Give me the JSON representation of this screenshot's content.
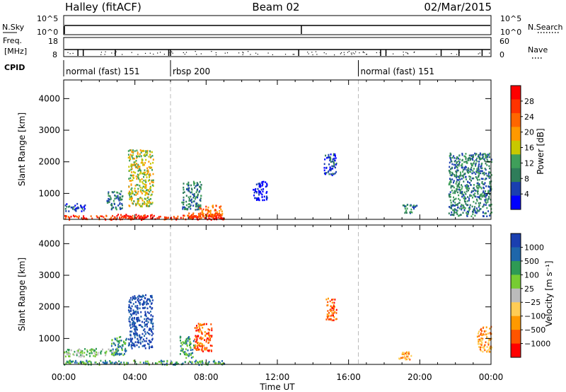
{
  "header": {
    "station": "Halley (fitACF)",
    "beam": "Beam 02",
    "date": "02/Mar/2015"
  },
  "summary_panels": {
    "nsky_label": "N.Sky",
    "nsearch_label": "N.Search",
    "noise_ticks": [
      "10^5",
      "10^0"
    ],
    "freq_label_1": "Freq.",
    "freq_label_2": "[MHz]",
    "freq_ticks": [
      "18",
      "8"
    ],
    "nave_label": "Nave",
    "nave_ticks": [
      "60",
      "0"
    ],
    "cpid_label": "CPID"
  },
  "cpid_segments": [
    {
      "label": "normal (fast) 151",
      "start_hour": 0.0
    },
    {
      "label": "rbsp 200",
      "start_hour": 6.0
    },
    {
      "label": "normal (fast) 151",
      "start_hour": 16.55
    }
  ],
  "colors": {
    "power": [
      "#0000ff",
      "#1a3fb0",
      "#2e7d5a",
      "#3f9f5a",
      "#c8c800",
      "#ff9900",
      "#ff6600",
      "#ff3300",
      "#ff0000"
    ],
    "velocity": [
      "#ff0000",
      "#ff5500",
      "#ff9900",
      "#ffcc55",
      "#bbbbbb",
      "#77cc33",
      "#2e9a55",
      "#1e66aa",
      "#1a3fb0"
    ]
  },
  "chart_data": [
    {
      "type": "heatmap",
      "panel": "power",
      "xlabel": "Time UT",
      "ylabel": "Slant Range [km]",
      "x_ticks": [
        "00:00",
        "04:00",
        "08:00",
        "12:00",
        "16:00",
        "20:00",
        "00:00"
      ],
      "xlim": [
        0,
        24
      ],
      "y_ticks": [
        1000,
        2000,
        3000,
        4000
      ],
      "ylim": [
        180,
        4590
      ],
      "colorbar": {
        "label": "Power [dB]",
        "ticks": [
          4,
          8,
          12,
          16,
          20,
          24,
          28
        ],
        "range": [
          0,
          32
        ]
      },
      "echo_regions": [
        {
          "t0": 0.0,
          "t1": 9.0,
          "r0": 190,
          "r1": 330,
          "level": 7
        },
        {
          "t0": 3.0,
          "t1": 5.1,
          "r0": 200,
          "r1": 360,
          "level": 8
        },
        {
          "t0": 7.0,
          "t1": 9.0,
          "r0": 200,
          "r1": 400,
          "level": 7
        },
        {
          "t0": 0.0,
          "t1": 1.2,
          "r0": 450,
          "r1": 700,
          "level": 1
        },
        {
          "t0": 2.4,
          "t1": 3.3,
          "r0": 500,
          "r1": 1100,
          "level": 2
        },
        {
          "t0": 3.6,
          "t1": 5.0,
          "r0": 600,
          "r1": 2400,
          "level": 4
        },
        {
          "t0": 6.6,
          "t1": 7.7,
          "r0": 500,
          "r1": 1400,
          "level": 2
        },
        {
          "t0": 7.6,
          "t1": 8.9,
          "r0": 300,
          "r1": 650,
          "level": 6
        },
        {
          "t0": 10.6,
          "t1": 11.4,
          "r0": 800,
          "r1": 1400,
          "level": 0
        },
        {
          "t0": 14.6,
          "t1": 15.3,
          "r0": 1600,
          "r1": 2300,
          "level": 1
        },
        {
          "t0": 19.0,
          "t1": 19.8,
          "r0": 400,
          "r1": 700,
          "level": 2
        },
        {
          "t0": 21.6,
          "t1": 24.0,
          "r0": 300,
          "r1": 2300,
          "level": 2
        }
      ]
    },
    {
      "type": "heatmap",
      "panel": "velocity",
      "xlabel": "Time UT",
      "ylabel": "Slant Range [km]",
      "x_ticks": [
        "00:00",
        "04:00",
        "08:00",
        "12:00",
        "16:00",
        "20:00",
        "00:00"
      ],
      "xlim": [
        0,
        24
      ],
      "y_ticks": [
        1000,
        2000,
        3000,
        4000
      ],
      "ylim": [
        180,
        4590
      ],
      "colorbar": {
        "label": "Velocity [m s⁻¹]",
        "ticks": [
          "1000",
          "500",
          "100",
          "25",
          "−25",
          "−100",
          "−500",
          "−1000"
        ]
      },
      "echo_regions": [
        {
          "t0": 0.0,
          "t1": 9.0,
          "r0": 190,
          "r1": 330,
          "level": 6
        },
        {
          "t0": 0.0,
          "t1": 3.0,
          "r0": 450,
          "r1": 700,
          "level": 5
        },
        {
          "t0": 2.6,
          "t1": 3.5,
          "r0": 500,
          "r1": 1100,
          "level": 6
        },
        {
          "t0": 3.6,
          "t1": 5.0,
          "r0": 700,
          "r1": 2400,
          "level": 8
        },
        {
          "t0": 6.5,
          "t1": 7.3,
          "r0": 400,
          "r1": 1100,
          "level": 6
        },
        {
          "t0": 7.3,
          "t1": 8.3,
          "r0": 600,
          "r1": 1500,
          "level": 1
        },
        {
          "t0": 14.7,
          "t1": 15.3,
          "r0": 1600,
          "r1": 2300,
          "level": 1
        },
        {
          "t0": 18.8,
          "t1": 19.6,
          "r0": 350,
          "r1": 600,
          "level": 2
        },
        {
          "t0": 23.2,
          "t1": 24.0,
          "r0": 600,
          "r1": 1400,
          "level": 2
        }
      ]
    }
  ]
}
